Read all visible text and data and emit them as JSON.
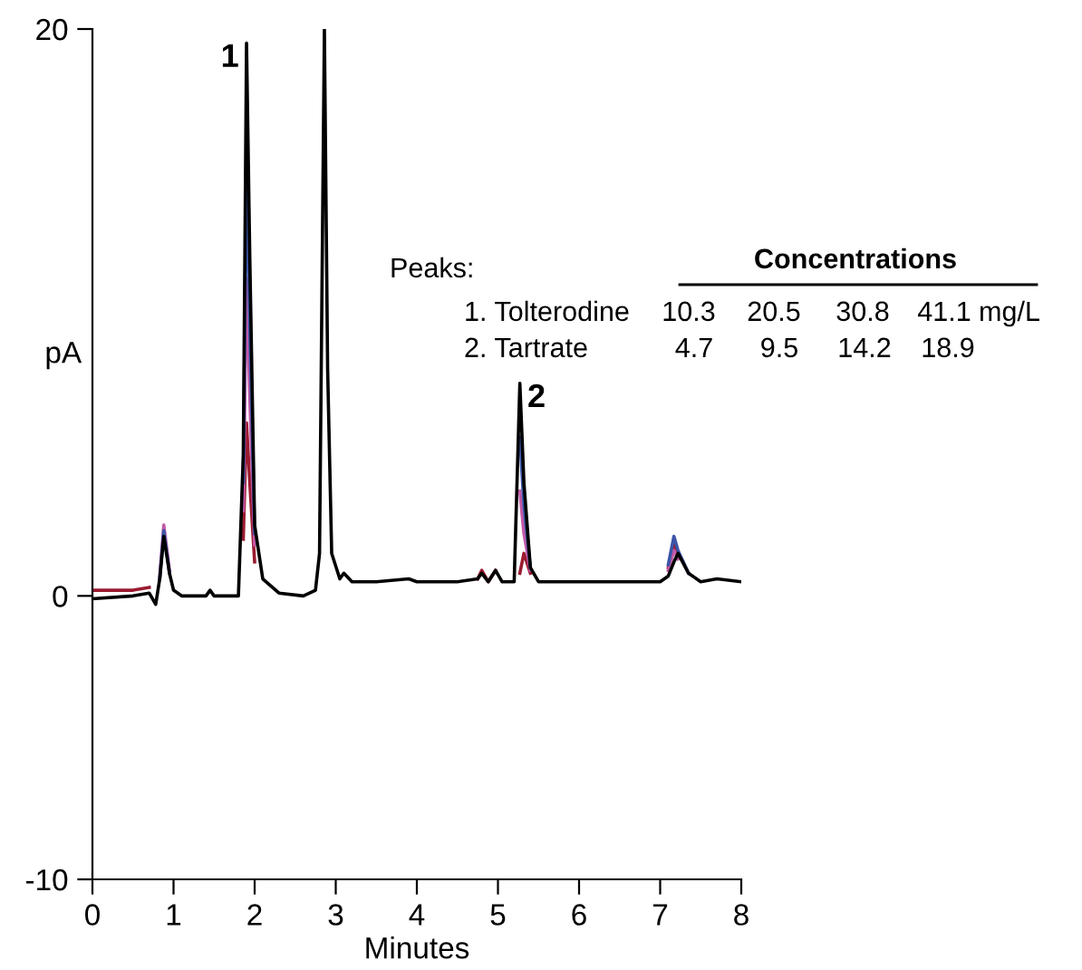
{
  "chart_data": {
    "type": "line",
    "xlabel": "Minutes",
    "ylabel": "pA",
    "x": [
      0,
      0.5,
      0.7,
      0.78,
      0.83,
      0.88,
      0.95,
      1.0,
      1.1,
      1.4,
      1.45,
      1.5,
      1.8,
      1.86,
      1.9,
      1.94,
      2.0,
      2.1,
      2.3,
      2.6,
      2.75,
      2.8,
      2.86,
      2.9,
      2.95,
      3.05,
      3.1,
      3.2,
      3.5,
      3.9,
      4.0,
      4.5,
      4.75,
      4.8,
      4.88,
      4.97,
      5.05,
      5.2,
      5.27,
      5.32,
      5.4,
      5.5,
      5.7,
      6.0,
      6.6,
      7.0,
      7.1,
      7.17,
      7.22,
      7.35,
      7.5,
      7.7,
      8.0
    ],
    "series": [
      {
        "color": "#9b1b30",
        "x": [
          0,
          0.5,
          0.7,
          0.75,
          1.86,
          1.9,
          1.94,
          2.0,
          2.05,
          4.75,
          4.8,
          4.88,
          4.97,
          5.0,
          5.27,
          5.32,
          5.4,
          5.45,
          7.1,
          7.17,
          7.22
        ],
        "values": [
          0.2,
          0.2,
          0.3,
          null,
          2.0,
          6.1,
          4.0,
          1.2,
          null,
          0.6,
          0.9,
          0.5,
          0.9,
          null,
          0.8,
          1.5,
          0.8,
          null,
          1.0,
          1.8,
          1.4
        ]
      },
      {
        "color": "#c45aa8",
        "x": [
          0.83,
          0.88,
          0.95,
          0.97,
          1.86,
          1.9,
          1.94,
          2.0,
          2.05,
          5.27,
          5.32,
          5.4,
          5.45,
          7.1,
          7.17,
          7.22
        ],
        "values": [
          0.7,
          2.5,
          0.9,
          null,
          3.0,
          11.2,
          7.0,
          1.8,
          null,
          3.7,
          2.2,
          0.9,
          null,
          0.9,
          1.6,
          1.3
        ]
      },
      {
        "color": "#3a55a8",
        "x": [
          0.83,
          0.88,
          0.95,
          0.97,
          1.86,
          1.9,
          1.94,
          2.0,
          2.05,
          5.27,
          5.32,
          5.4,
          5.45,
          7.1,
          7.17,
          7.22,
          7.35
        ],
        "values": [
          0.6,
          2.3,
          0.8,
          null,
          4.0,
          15.5,
          9.5,
          2.2,
          null,
          5.6,
          3.2,
          1.0,
          null,
          1.1,
          2.1,
          1.6,
          0.8
        ]
      },
      {
        "color": "#000000",
        "values": [
          -0.1,
          0.0,
          0.1,
          -0.3,
          0.6,
          2.1,
          0.8,
          0.2,
          0.0,
          0.0,
          0.2,
          0.0,
          0.0,
          5.0,
          19.5,
          12.0,
          2.5,
          0.6,
          0.1,
          0.0,
          0.2,
          1.5,
          20,
          8,
          1.5,
          0.6,
          0.8,
          0.5,
          0.5,
          0.6,
          0.5,
          0.5,
          0.6,
          0.8,
          0.5,
          0.9,
          0.5,
          0.5,
          7.5,
          4.0,
          1.0,
          0.5,
          0.5,
          0.5,
          0.5,
          0.5,
          0.7,
          1.2,
          1.5,
          0.8,
          0.5,
          0.6,
          0.5
        ]
      }
    ],
    "xlim": [
      0,
      8
    ],
    "xticks": [
      0,
      1,
      2,
      3,
      4,
      5,
      6,
      7,
      8
    ],
    "ylim": [
      -10,
      20
    ],
    "yticks": [
      -10,
      0,
      20
    ],
    "grid": false,
    "marker": "none",
    "line_style": "solid",
    "annotations": [
      {
        "text": "1",
        "x": 1.9,
        "y": 19.5
      },
      {
        "text": "2",
        "x": 5.27,
        "y": 7.5
      },
      "Peaks:",
      "Concentrations",
      "1. Tolterodine",
      "10.3",
      "20.5",
      "30.8",
      "41.1",
      "mg/L",
      "2. Tartrate",
      "4.7",
      "9.5",
      "14.2",
      "18.9"
    ]
  }
}
